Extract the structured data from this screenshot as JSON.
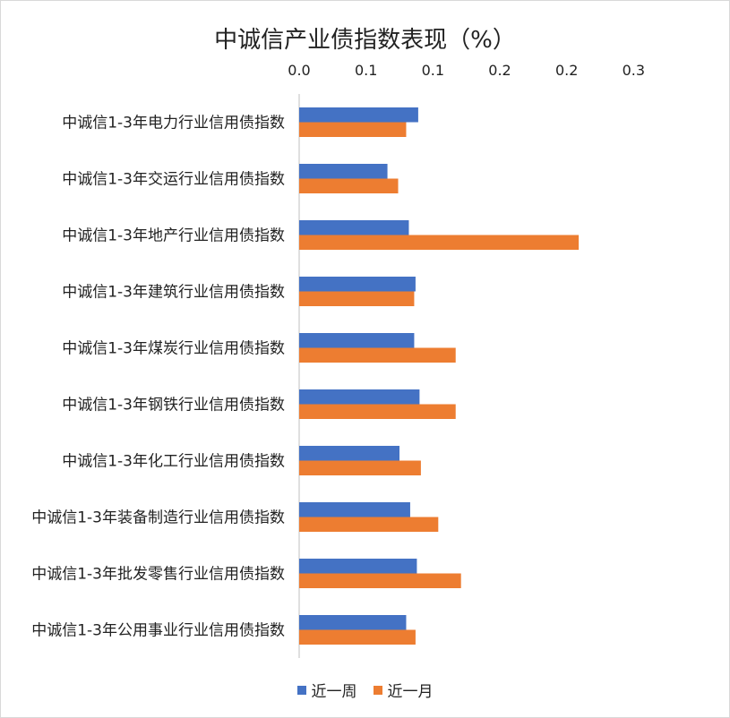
{
  "chart_data": {
    "type": "bar",
    "orientation": "horizontal",
    "title": "中诚信产业债指数表现（%）",
    "x_axis_position": "top",
    "xlim": [
      0,
      0.3
    ],
    "x_ticks": [
      "0.0",
      "0.1",
      "0.1",
      "0.2",
      "0.2",
      "0.3"
    ],
    "x_tick_values": [
      0,
      0.05,
      0.1,
      0.15,
      0.2,
      0.25
    ],
    "categories": [
      "中诚信1-3年电力行业信用债指数",
      "中诚信1-3年交运行业信用债指数",
      "中诚信1-3年地产行业信用债指数",
      "中诚信1-3年建筑行业信用债指数",
      "中诚信1-3年煤炭行业信用债指数",
      "中诚信1-3年钢铁行业信用债指数",
      "中诚信1-3年化工行业信用债指数",
      "中诚信1-3年装备制造行业信用债指数",
      "中诚信1-3年批发零售行业信用债指数",
      "中诚信1-3年公用事业行业信用债指数"
    ],
    "series": [
      {
        "name": "近一周",
        "color": "#4472C4",
        "values": [
          0.089,
          0.066,
          0.082,
          0.087,
          0.086,
          0.09,
          0.075,
          0.083,
          0.088,
          0.08
        ]
      },
      {
        "name": "近一月",
        "color": "#ED7D31",
        "values": [
          0.08,
          0.074,
          0.209,
          0.086,
          0.117,
          0.117,
          0.091,
          0.104,
          0.121,
          0.087
        ]
      }
    ],
    "legend_position": "bottom",
    "grid": false
  }
}
